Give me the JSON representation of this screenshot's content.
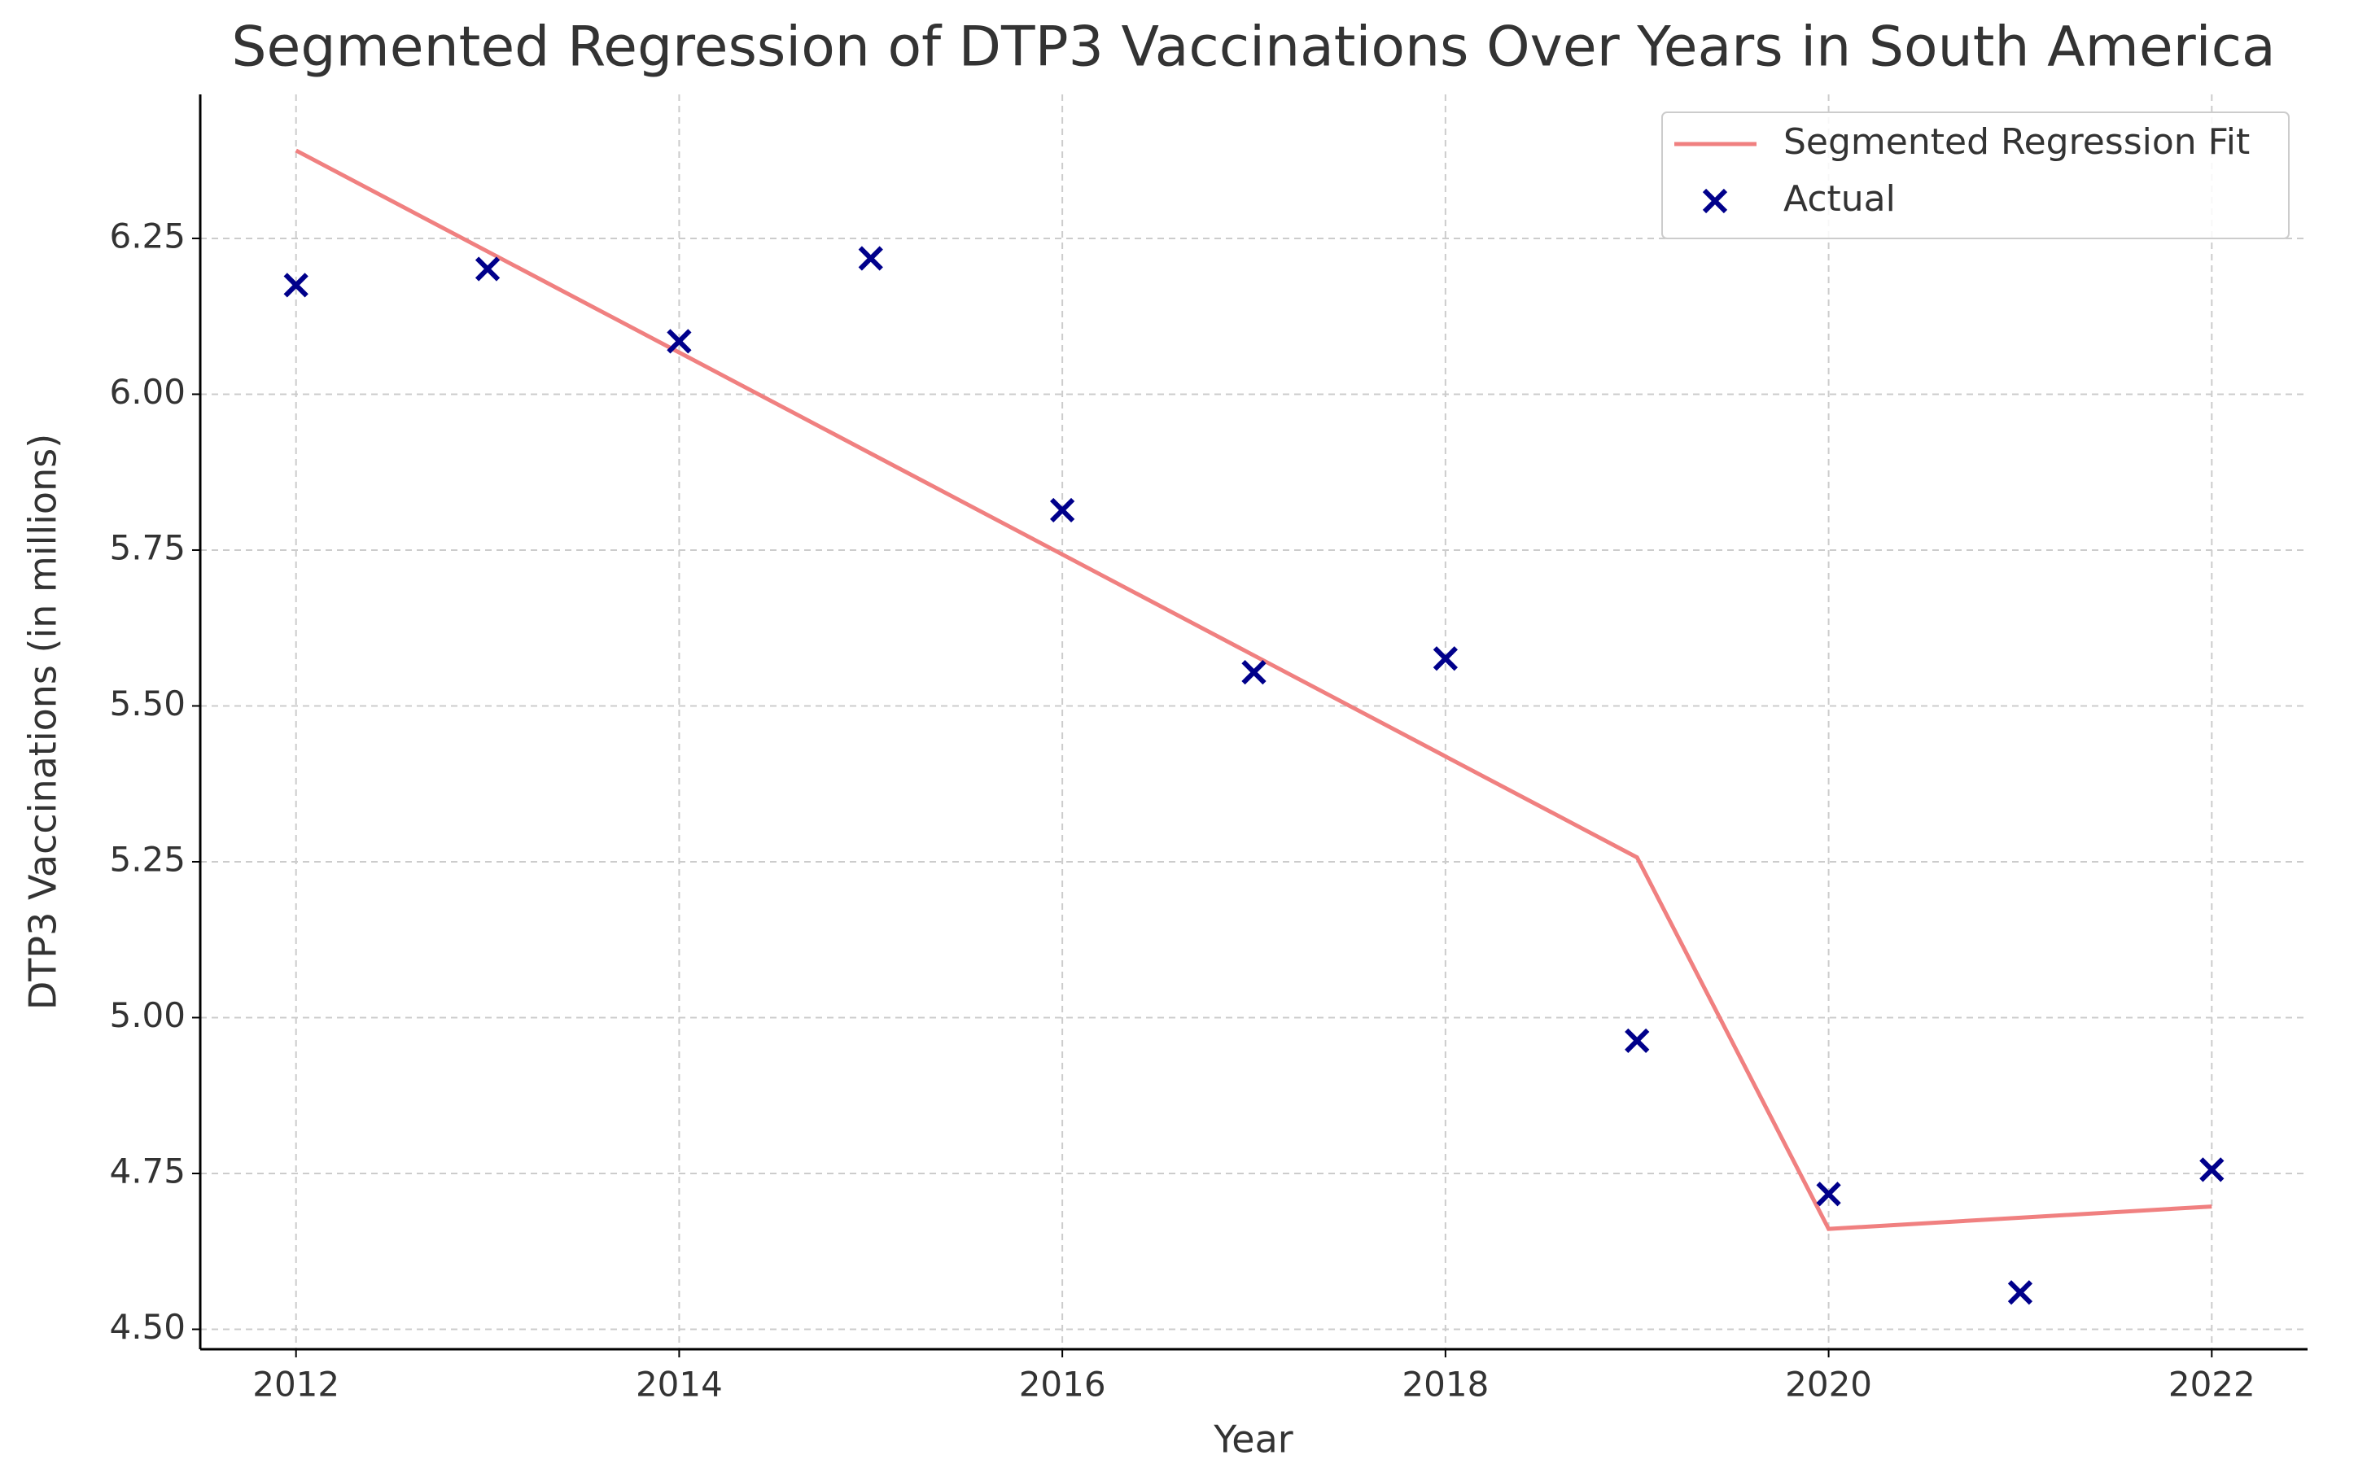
{
  "chart_data": {
    "type": "line",
    "title": "Segmented Regression of DTP3 Vaccinations Over Years in South America",
    "xlabel": "Year",
    "ylabel": "DTP3 Vaccinations (in millions)",
    "x": [
      2012,
      2013,
      2014,
      2015,
      2016,
      2017,
      2018,
      2019,
      2020,
      2021,
      2022
    ],
    "series": [
      {
        "name": "Segmented Regression Fit",
        "type": "line",
        "color": "#f08080",
        "values": [
          6.391,
          6.229,
          6.067,
          5.905,
          5.743,
          5.581,
          5.419,
          5.257,
          4.661,
          4.679,
          4.697
        ]
      },
      {
        "name": "Actual",
        "type": "scatter",
        "marker": "x",
        "color": "#00008b",
        "values": [
          6.175,
          6.201,
          6.085,
          6.218,
          5.814,
          5.554,
          5.576,
          4.963,
          4.717,
          4.559,
          4.756
        ]
      }
    ],
    "xlim": [
      2011.5,
      2022.5
    ],
    "xticks": [
      2012,
      2014,
      2016,
      2018,
      2020,
      2022
    ],
    "ylim": [
      4.468,
      6.481
    ],
    "yticks": [
      {
        "value": 4.5,
        "label": "4.50"
      },
      4.75,
      {
        "value": 5,
        "label": "5.00"
      },
      5.25,
      {
        "value": 5.5,
        "label": "5.50"
      },
      5.75,
      {
        "value": 6,
        "label": "6.00"
      },
      6.25
    ],
    "grid": true,
    "legend": "upper right"
  }
}
